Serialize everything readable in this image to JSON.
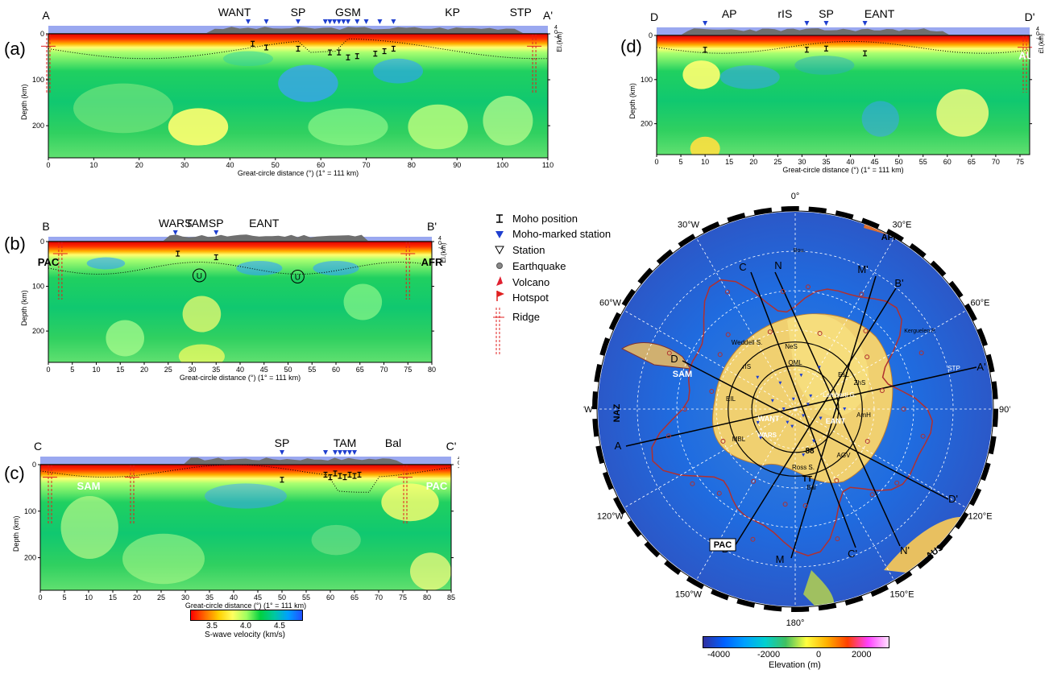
{
  "panels": {
    "a": {
      "label": "(a)",
      "start": "A",
      "end": "A'",
      "tags": [
        {
          "t": "WANT",
          "x": 41
        },
        {
          "t": "SP",
          "x": 55
        },
        {
          "t": "GSM",
          "x": 66
        },
        {
          "t": "KP",
          "x": 89
        },
        {
          "t": "STP",
          "x": 104
        }
      ],
      "side_labels": [],
      "xmax": 110,
      "xticks": [
        0,
        10,
        20,
        30,
        40,
        50,
        60,
        70,
        80,
        90,
        100,
        110
      ],
      "depth_ticks": [
        0,
        100,
        200
      ],
      "xlabel": "Great-circle distance (°) (1° = 111 km)",
      "ylabel": "Depth (km)",
      "elev_label": "El.(km)",
      "elev_ticks": [
        "4",
        "0",
        "-4"
      ]
    },
    "b": {
      "label": "(b)",
      "start": "B",
      "end": "B'",
      "tags": [
        {
          "t": "WARS",
          "x": 26.5
        },
        {
          "t": "TAM",
          "x": 31
        },
        {
          "t": "SP",
          "x": 35
        },
        {
          "t": "EANT",
          "x": 45
        }
      ],
      "side_labels": [
        {
          "t": "PAC",
          "x": 0
        },
        {
          "t": "AFR",
          "x": 80
        }
      ],
      "u_marks": [
        "U",
        "U"
      ],
      "xmax": 80,
      "xticks": [
        0,
        5,
        10,
        15,
        20,
        25,
        30,
        35,
        40,
        45,
        50,
        55,
        60,
        65,
        70,
        75,
        80
      ],
      "depth_ticks": [
        0,
        100,
        200
      ],
      "xlabel": "Great-circle distance (°) (1° = 111 km)",
      "ylabel": "Depth (km)",
      "elev_label": "El.(km)",
      "elev_ticks": [
        "4",
        "0",
        "-4"
      ]
    },
    "c": {
      "label": "(c)",
      "start": "C",
      "end": "C'",
      "tags": [
        {
          "t": "SP",
          "x": 50
        },
        {
          "t": "TAM",
          "x": 63
        },
        {
          "t": "Bal",
          "x": 73
        }
      ],
      "side_labels": [
        {
          "t": "SAM",
          "x": 10
        },
        {
          "t": "PAC",
          "x": 82
        }
      ],
      "xmax": 85,
      "xticks": [
        0,
        5,
        10,
        15,
        20,
        25,
        30,
        35,
        40,
        45,
        50,
        55,
        60,
        65,
        70,
        75,
        80,
        85
      ],
      "depth_ticks": [
        0,
        100,
        200
      ],
      "xlabel": "Great-circle distance (°) (1° = 111 km)",
      "ylabel": "Depth (km)",
      "elev_label": "El.(km)",
      "elev_ticks": [
        "4",
        "0",
        "-4"
      ]
    },
    "d": {
      "label": "(d)",
      "start": "D",
      "end": "D'",
      "tags": [
        {
          "t": "AP",
          "x": 15
        },
        {
          "t": "rIS",
          "x": 26.5
        },
        {
          "t": "SP",
          "x": 35
        },
        {
          "t": "EANT",
          "x": 46
        }
      ],
      "side_labels": [
        {
          "t": "AUS",
          "x": 77
        }
      ],
      "xmax": 77,
      "xticks": [
        0,
        5,
        10,
        15,
        20,
        25,
        30,
        35,
        40,
        45,
        50,
        55,
        60,
        65,
        70,
        75
      ],
      "depth_ticks": [
        0,
        100,
        200
      ],
      "xlabel": "Great-circle distance (°) (1° = 111 km)",
      "ylabel": "Depth (km)",
      "elev_label": "El.(km)",
      "elev_ticks": [
        "4",
        "0",
        "-4"
      ]
    }
  },
  "legend": {
    "items": [
      {
        "label": "Moho position",
        "symbol": "moho"
      },
      {
        "label": "Moho-marked station",
        "symbol": "blue-triangle"
      },
      {
        "label": "Station",
        "symbol": "open-triangle"
      },
      {
        "label": "Earthquake",
        "symbol": "grey-dot"
      },
      {
        "label": "Volcano",
        "symbol": "volcano"
      },
      {
        "label": "Hotspot",
        "symbol": "flag"
      },
      {
        "label": "Ridge",
        "symbol": "ridge"
      }
    ]
  },
  "velocity_bar": {
    "title": "S-wave velocity (km/s)",
    "ticks": [
      "3.5",
      "4.0",
      "4.5"
    ],
    "colors": [
      "#ff0000",
      "#ff6a00",
      "#ffd000",
      "#ffff60",
      "#9fff60",
      "#00d040",
      "#00c8a0",
      "#00a0ff",
      "#2050ff"
    ]
  },
  "elevation_bar": {
    "title": "Elevation (m)",
    "ticks": [
      "-4000",
      "-2000",
      "0",
      "2000"
    ],
    "colors": [
      "#3030a0",
      "#0060ff",
      "#00a0ff",
      "#00d0d0",
      "#40c060",
      "#ffff40",
      "#ffb000",
      "#ff4000",
      "#ff40ff",
      "#ffe0ff"
    ]
  },
  "map": {
    "lon_labels": [
      "0°",
      "30°E",
      "60°E",
      "90°E",
      "120°E",
      "150°E",
      "180°",
      "150°W",
      "120°W",
      "90°W",
      "60°W",
      "30°W"
    ],
    "plates": [
      "AFR",
      "SAM",
      "NAZ",
      "PAC",
      "AUS"
    ],
    "profile_ends": [
      "A",
      "A'",
      "B",
      "B'",
      "C",
      "C'",
      "D",
      "D'",
      "M",
      "M'",
      "N",
      "N'",
      "STP"
    ],
    "regions": [
      "WANT",
      "EANT",
      "WARS",
      "NeS",
      "QML",
      "Weddell S.",
      "rIS",
      "EIL",
      "MBL",
      "EsL",
      "ZhS",
      "Lamberti G.",
      "AmH",
      "AGV",
      "Ross S.",
      "Bal",
      "88",
      "TT",
      "TAM",
      "SP",
      "Bou.",
      "Kerguelen P."
    ]
  }
}
